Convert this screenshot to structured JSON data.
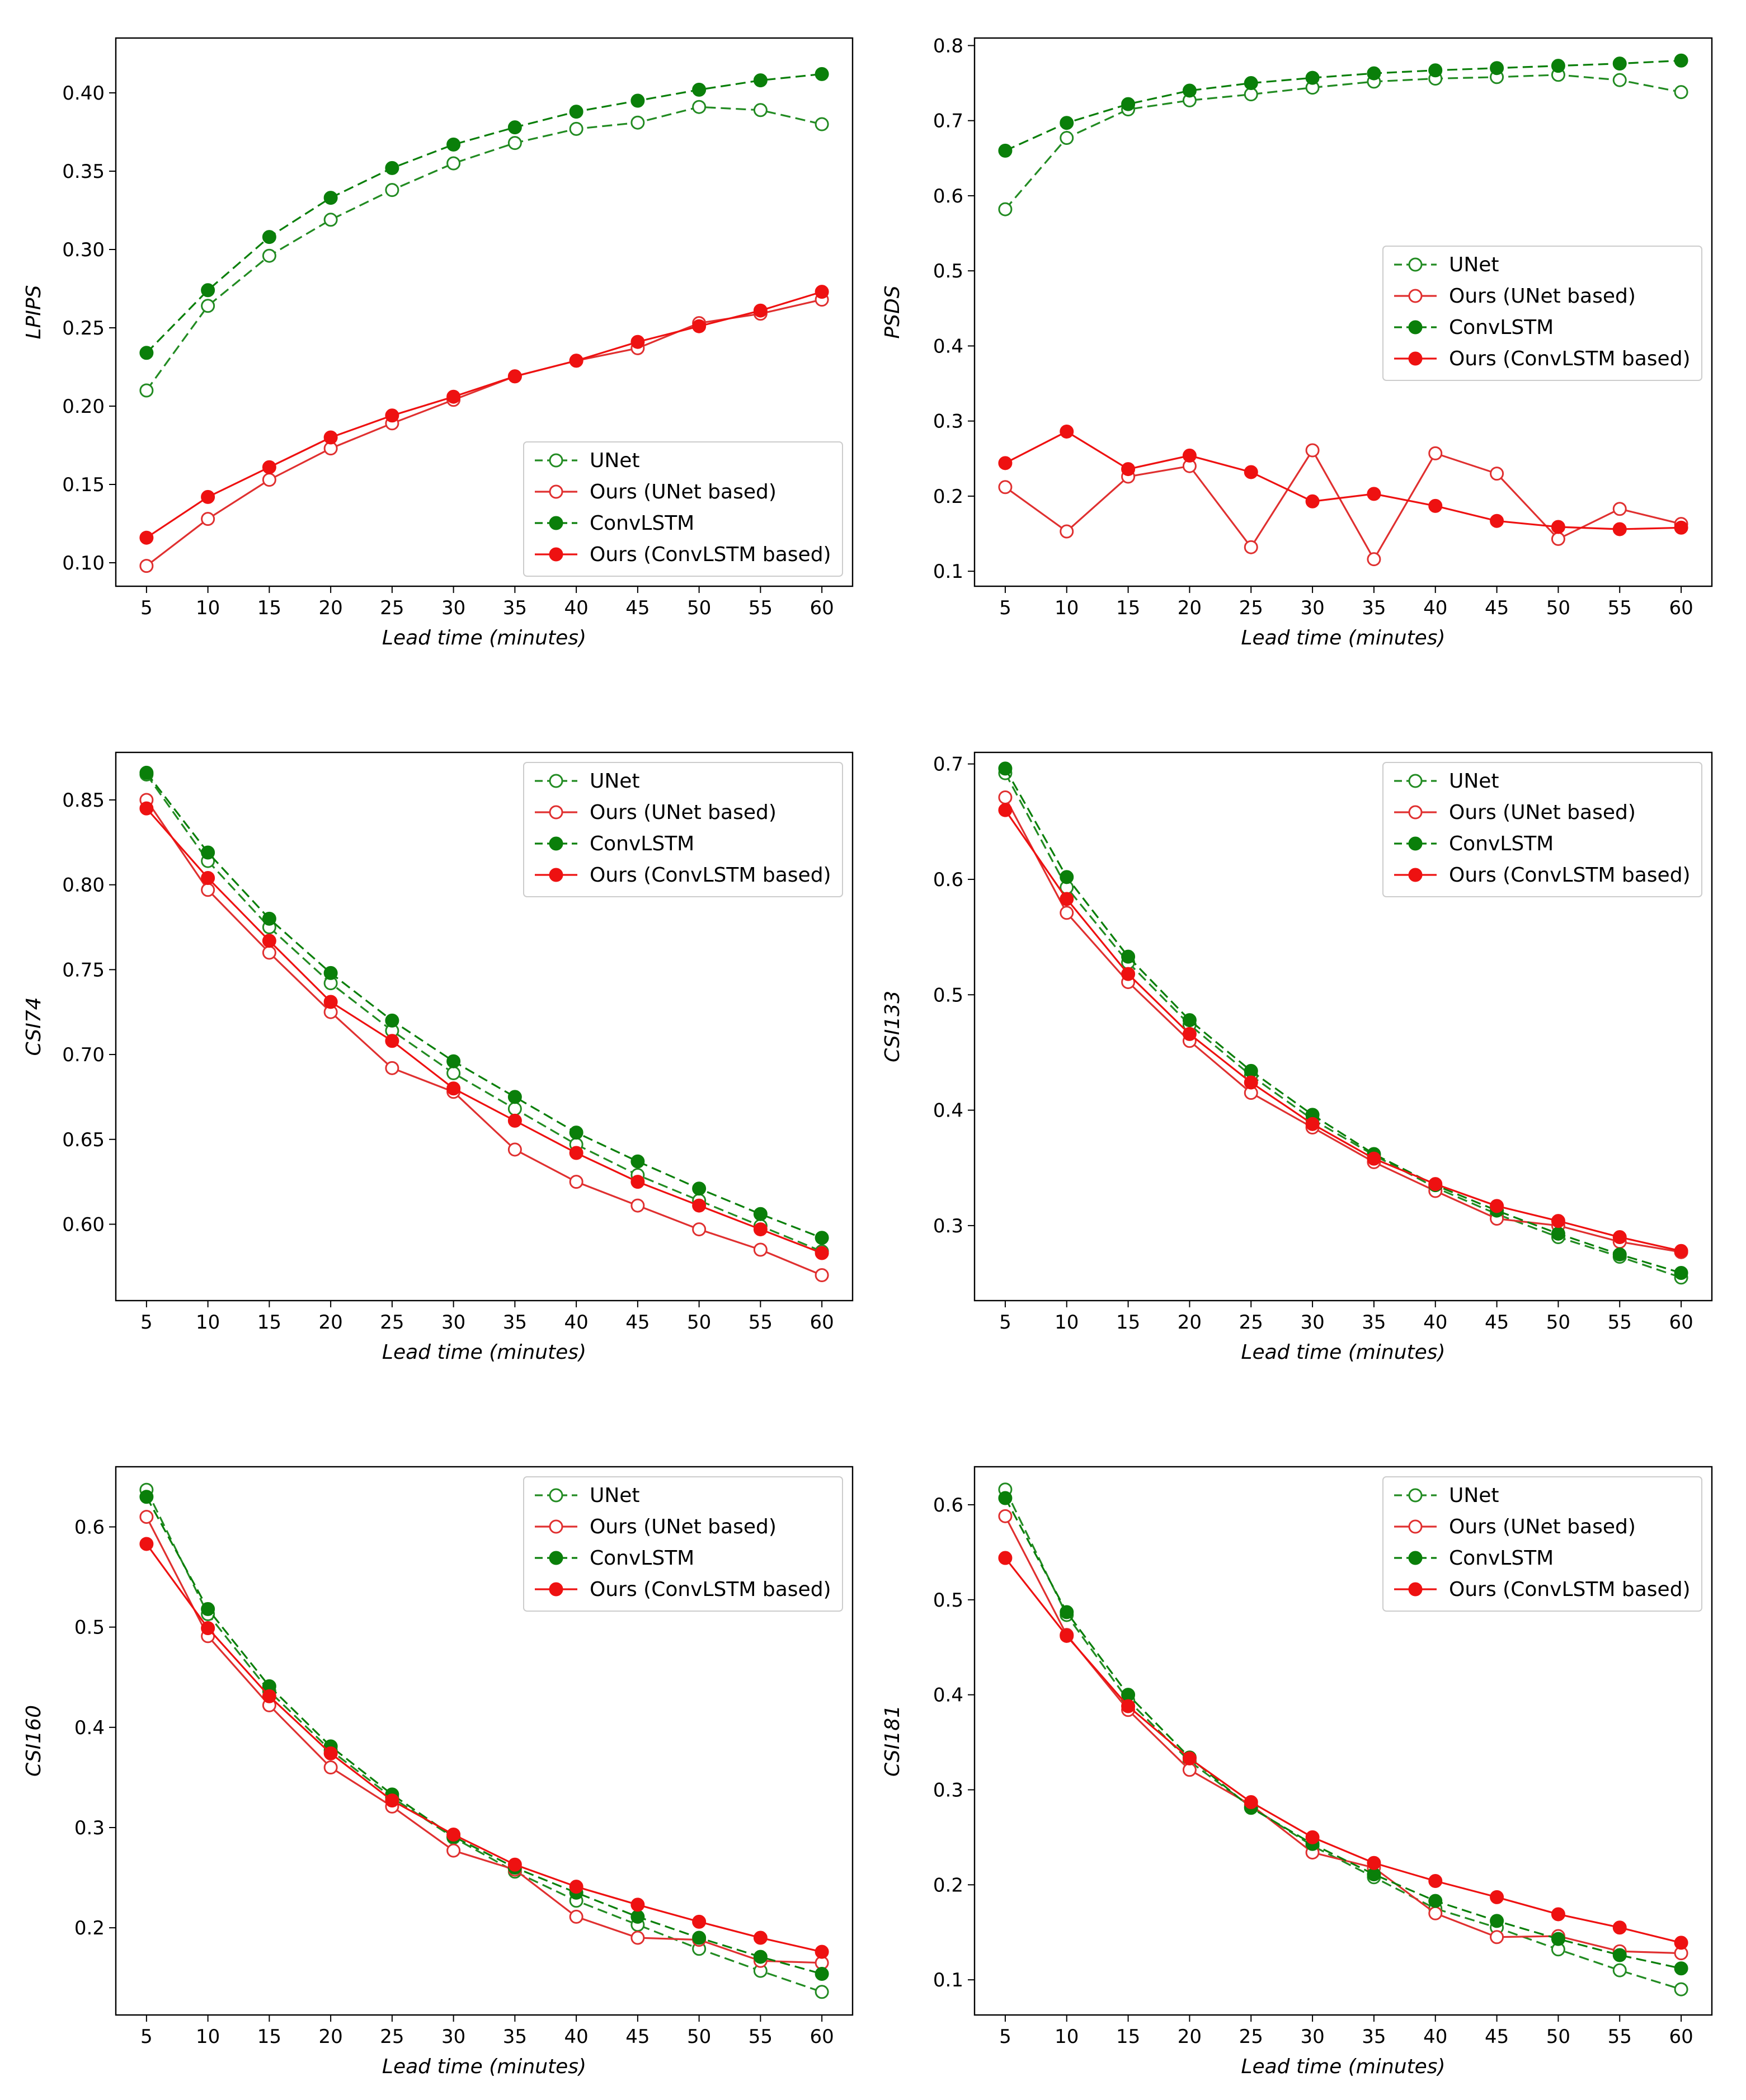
{
  "colors": {
    "unet": "#228B22",
    "convlstm": "#0A7F0A",
    "ours_unet": "#E03030",
    "ours_convlstm": "#EE1111",
    "frame": "#000000",
    "legend_border": "#cccccc"
  },
  "legend_labels": [
    "UNet",
    "Ours (UNet based)",
    "ConvLSTM",
    "Ours (ConvLSTM based)"
  ],
  "chart_data": [
    {
      "type": "line",
      "xlabel_main": "Lead time",
      "xlabel_unit": "(minutes)",
      "ylabel": "LPIPS",
      "x": [
        5,
        10,
        15,
        20,
        25,
        30,
        35,
        40,
        45,
        50,
        55,
        60
      ],
      "ylim": [
        0.085,
        0.435
      ],
      "yticks": [
        0.1,
        0.15,
        0.2,
        0.25,
        0.3,
        0.35,
        0.4
      ],
      "ytick_labels": [
        "0.10",
        "0.15",
        "0.20",
        "0.25",
        "0.30",
        "0.35",
        "0.40"
      ],
      "legend_position": "lower-right",
      "series": [
        {
          "name": "UNet",
          "values": [
            0.21,
            0.264,
            0.296,
            0.319,
            0.338,
            0.355,
            0.368,
            0.377,
            0.381,
            0.391,
            0.389,
            0.38
          ]
        },
        {
          "name": "Ours (UNet based)",
          "values": [
            0.098,
            0.128,
            0.153,
            0.173,
            0.189,
            0.204,
            0.219,
            0.229,
            0.237,
            0.253,
            0.259,
            0.268
          ]
        },
        {
          "name": "ConvLSTM",
          "values": [
            0.234,
            0.274,
            0.308,
            0.333,
            0.352,
            0.367,
            0.378,
            0.388,
            0.395,
            0.402,
            0.408,
            0.412
          ]
        },
        {
          "name": "Ours (ConvLSTM based)",
          "values": [
            0.116,
            0.142,
            0.161,
            0.18,
            0.194,
            0.206,
            0.219,
            0.229,
            0.241,
            0.251,
            0.261,
            0.273
          ]
        }
      ]
    },
    {
      "type": "line",
      "xlabel_main": "Lead time",
      "xlabel_unit": "(minutes)",
      "ylabel": "PSDS",
      "x": [
        5,
        10,
        15,
        20,
        25,
        30,
        35,
        40,
        45,
        50,
        55,
        60
      ],
      "ylim": [
        0.08,
        0.81
      ],
      "yticks": [
        0.1,
        0.2,
        0.3,
        0.4,
        0.5,
        0.6,
        0.7,
        0.8
      ],
      "ytick_labels": [
        "0.1",
        "0.2",
        "0.3",
        "0.4",
        "0.5",
        "0.6",
        "0.7",
        "0.8"
      ],
      "legend_position": "center-right",
      "series": [
        {
          "name": "UNet",
          "values": [
            0.582,
            0.677,
            0.715,
            0.727,
            0.735,
            0.744,
            0.752,
            0.756,
            0.758,
            0.761,
            0.754,
            0.738
          ]
        },
        {
          "name": "Ours (UNet based)",
          "values": [
            0.212,
            0.153,
            0.226,
            0.24,
            0.132,
            0.261,
            0.116,
            0.257,
            0.23,
            0.143,
            0.183,
            0.163
          ]
        },
        {
          "name": "ConvLSTM",
          "values": [
            0.66,
            0.697,
            0.722,
            0.74,
            0.75,
            0.757,
            0.763,
            0.767,
            0.77,
            0.773,
            0.776,
            0.78
          ]
        },
        {
          "name": "Ours (ConvLSTM based)",
          "values": [
            0.244,
            0.286,
            0.236,
            0.254,
            0.232,
            0.193,
            0.203,
            0.187,
            0.167,
            0.159,
            0.156,
            0.158
          ]
        }
      ]
    },
    {
      "type": "line",
      "xlabel_main": "Lead time",
      "xlabel_unit": "(minutes)",
      "ylabel": "CSI74",
      "x": [
        5,
        10,
        15,
        20,
        25,
        30,
        35,
        40,
        45,
        50,
        55,
        60
      ],
      "ylim": [
        0.555,
        0.878
      ],
      "yticks": [
        0.6,
        0.65,
        0.7,
        0.75,
        0.8,
        0.85
      ],
      "ytick_labels": [
        "0.60",
        "0.65",
        "0.70",
        "0.75",
        "0.80",
        "0.85"
      ],
      "legend_position": "upper-right",
      "series": [
        {
          "name": "UNet",
          "values": [
            0.865,
            0.814,
            0.775,
            0.742,
            0.714,
            0.689,
            0.668,
            0.647,
            0.629,
            0.614,
            0.599,
            0.584
          ]
        },
        {
          "name": "Ours (UNet based)",
          "values": [
            0.85,
            0.797,
            0.76,
            0.725,
            0.692,
            0.678,
            0.644,
            0.625,
            0.611,
            0.597,
            0.585,
            0.57
          ]
        },
        {
          "name": "ConvLSTM",
          "values": [
            0.866,
            0.819,
            0.78,
            0.748,
            0.72,
            0.696,
            0.675,
            0.654,
            0.637,
            0.621,
            0.606,
            0.592
          ]
        },
        {
          "name": "Ours (ConvLSTM based)",
          "values": [
            0.845,
            0.804,
            0.767,
            0.731,
            0.708,
            0.68,
            0.661,
            0.642,
            0.625,
            0.611,
            0.597,
            0.583
          ]
        }
      ]
    },
    {
      "type": "line",
      "xlabel_main": "Lead time",
      "xlabel_unit": "(minutes)",
      "ylabel": "CSI133",
      "x": [
        5,
        10,
        15,
        20,
        25,
        30,
        35,
        40,
        45,
        50,
        55,
        60
      ],
      "ylim": [
        0.235,
        0.71
      ],
      "yticks": [
        0.3,
        0.4,
        0.5,
        0.6,
        0.7
      ],
      "ytick_labels": [
        "0.3",
        "0.4",
        "0.5",
        "0.6",
        "0.7"
      ],
      "legend_position": "upper-right",
      "series": [
        {
          "name": "UNet",
          "values": [
            0.692,
            0.593,
            0.528,
            0.474,
            0.43,
            0.392,
            0.361,
            0.333,
            0.31,
            0.29,
            0.273,
            0.255
          ]
        },
        {
          "name": "Ours (UNet based)",
          "values": [
            0.671,
            0.571,
            0.511,
            0.46,
            0.415,
            0.385,
            0.355,
            0.33,
            0.306,
            0.3,
            0.286,
            0.277
          ]
        },
        {
          "name": "ConvLSTM",
          "values": [
            0.696,
            0.602,
            0.533,
            0.478,
            0.434,
            0.396,
            0.362,
            0.335,
            0.313,
            0.293,
            0.275,
            0.259
          ]
        },
        {
          "name": "Ours (ConvLSTM based)",
          "values": [
            0.66,
            0.583,
            0.518,
            0.466,
            0.424,
            0.388,
            0.358,
            0.336,
            0.317,
            0.304,
            0.29,
            0.278
          ]
        }
      ]
    },
    {
      "type": "line",
      "xlabel_main": "Lead time",
      "xlabel_unit": "(minutes)",
      "ylabel": "CSI160",
      "x": [
        5,
        10,
        15,
        20,
        25,
        30,
        35,
        40,
        45,
        50,
        55,
        60
      ],
      "ylim": [
        0.113,
        0.66
      ],
      "yticks": [
        0.2,
        0.3,
        0.4,
        0.5,
        0.6
      ],
      "ytick_labels": [
        "0.2",
        "0.3",
        "0.4",
        "0.5",
        "0.6"
      ],
      "legend_position": "upper-right",
      "series": [
        {
          "name": "UNet",
          "values": [
            0.637,
            0.513,
            0.436,
            0.377,
            0.33,
            0.29,
            0.256,
            0.227,
            0.203,
            0.179,
            0.157,
            0.136
          ]
        },
        {
          "name": "Ours (UNet based)",
          "values": [
            0.61,
            0.491,
            0.422,
            0.36,
            0.321,
            0.277,
            0.258,
            0.211,
            0.19,
            0.188,
            0.167,
            0.165
          ]
        },
        {
          "name": "ConvLSTM",
          "values": [
            0.63,
            0.518,
            0.441,
            0.381,
            0.333,
            0.291,
            0.26,
            0.235,
            0.211,
            0.19,
            0.171,
            0.154
          ]
        },
        {
          "name": "Ours (ConvLSTM based)",
          "values": [
            0.583,
            0.499,
            0.431,
            0.374,
            0.327,
            0.293,
            0.263,
            0.241,
            0.223,
            0.206,
            0.19,
            0.176
          ]
        }
      ]
    },
    {
      "type": "line",
      "xlabel_main": "Lead time",
      "xlabel_unit": "(minutes)",
      "ylabel": "CSI181",
      "x": [
        5,
        10,
        15,
        20,
        25,
        30,
        35,
        40,
        45,
        50,
        55,
        60
      ],
      "ylim": [
        0.063,
        0.64
      ],
      "yticks": [
        0.1,
        0.2,
        0.3,
        0.4,
        0.5,
        0.6
      ],
      "ytick_labels": [
        "0.1",
        "0.2",
        "0.3",
        "0.4",
        "0.5",
        "0.6"
      ],
      "legend_position": "upper-right",
      "series": [
        {
          "name": "UNet",
          "values": [
            0.616,
            0.484,
            0.394,
            0.33,
            0.282,
            0.241,
            0.208,
            0.175,
            0.155,
            0.132,
            0.11,
            0.09
          ]
        },
        {
          "name": "Ours (UNet based)",
          "values": [
            0.588,
            0.463,
            0.384,
            0.321,
            0.284,
            0.234,
            0.218,
            0.17,
            0.145,
            0.146,
            0.13,
            0.128
          ]
        },
        {
          "name": "ConvLSTM",
          "values": [
            0.607,
            0.487,
            0.4,
            0.334,
            0.281,
            0.243,
            0.211,
            0.183,
            0.162,
            0.143,
            0.126,
            0.112
          ]
        },
        {
          "name": "Ours (ConvLSTM based)",
          "values": [
            0.544,
            0.462,
            0.388,
            0.333,
            0.287,
            0.25,
            0.223,
            0.204,
            0.187,
            0.169,
            0.155,
            0.139
          ]
        }
      ]
    }
  ]
}
